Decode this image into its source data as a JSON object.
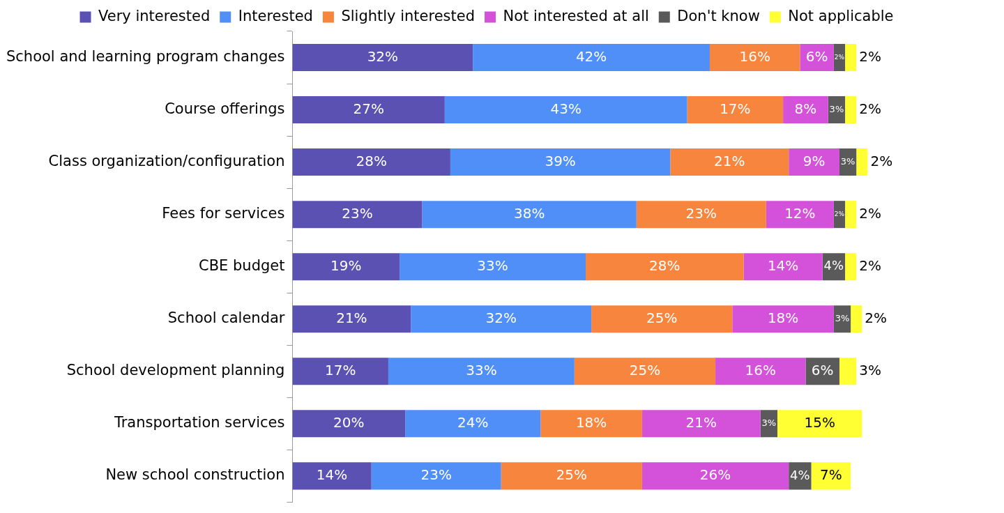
{
  "chart_data": {
    "type": "bar",
    "orientation": "horizontal",
    "stacked": true,
    "legend": "top",
    "grid": false,
    "tick_labels": "y",
    "categories": [
      "School and learning program changes",
      "Course offerings",
      "Class organization/configuration",
      "Fees for services",
      "CBE budget",
      "School calendar",
      "School development planning",
      "Transportation services",
      "New school construction"
    ],
    "series": [
      {
        "name": "Very interested",
        "color": "#5b51b3",
        "values": [
          32,
          27,
          28,
          23,
          19,
          21,
          17,
          20,
          14
        ],
        "value_labels": [
          "32%",
          "27%",
          "28%",
          "23%",
          "19%",
          "21%",
          "17%",
          "20%",
          "14%"
        ]
      },
      {
        "name": "Interested",
        "color": "#4f8ff7",
        "values": [
          42,
          43,
          39,
          38,
          33,
          32,
          33,
          24,
          23
        ],
        "value_labels": [
          "42%",
          "43%",
          "39%",
          "38%",
          "33%",
          "32%",
          "33%",
          "24%",
          "23%"
        ]
      },
      {
        "name": "Slightly interested",
        "color": "#f7853d",
        "values": [
          16,
          17,
          21,
          23,
          28,
          25,
          25,
          18,
          25
        ],
        "value_labels": [
          "16%",
          "17%",
          "21%",
          "23%",
          "28%",
          "25%",
          "25%",
          "18%",
          "25%"
        ]
      },
      {
        "name": "Not interested at all",
        "color": "#d352d9",
        "values": [
          6,
          8,
          9,
          12,
          14,
          18,
          16,
          21,
          26
        ],
        "value_labels": [
          "6%",
          "8%",
          "9%",
          "12%",
          "14%",
          "18%",
          "16%",
          "21%",
          "26%"
        ]
      },
      {
        "name": "Don't know",
        "color": "#5a5a5a",
        "values": [
          2,
          3,
          3,
          2,
          4,
          3,
          6,
          3,
          4
        ],
        "value_labels": [
          "2%",
          "3%",
          "3%",
          "2%",
          "4%",
          "3%",
          "6%",
          "3%",
          "4%"
        ]
      },
      {
        "name": "Not applicable",
        "color": "#ffff33",
        "values": [
          2,
          2,
          2,
          2,
          2,
          2,
          3,
          15,
          7
        ],
        "value_labels": [
          "2%",
          "2%",
          "2%",
          "2%",
          "2%",
          "2%",
          "3%",
          "15%",
          "7%"
        ]
      }
    ]
  }
}
